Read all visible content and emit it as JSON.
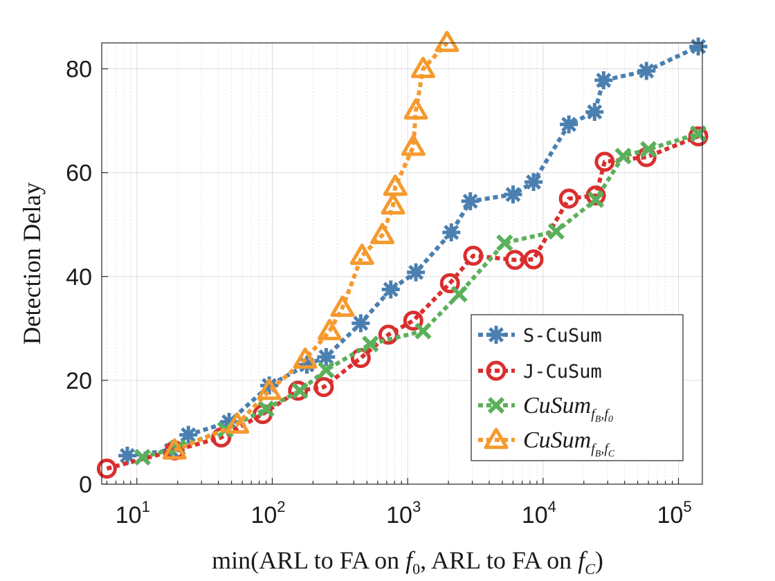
{
  "chart_data": {
    "type": "line",
    "xscale": "log",
    "xlim": [
      5.5,
      150000
    ],
    "ylim": [
      0,
      85
    ],
    "xlabel": "min(ARL to FA on f0, ARL to FA on fC)",
    "ylabel": "Detection Delay",
    "grid": true,
    "legend_position": "bottom-right",
    "x_ticks": [
      {
        "value": 10,
        "base": "10",
        "exp": "1"
      },
      {
        "value": 100,
        "base": "10",
        "exp": "2"
      },
      {
        "value": 1000,
        "base": "10",
        "exp": "3"
      },
      {
        "value": 10000,
        "base": "10",
        "exp": "4"
      },
      {
        "value": 100000,
        "base": "10",
        "exp": "5"
      }
    ],
    "y_ticks": [
      0,
      20,
      40,
      60,
      80
    ],
    "series": [
      {
        "name": "S-CuSum",
        "legend_label": "S-CuSum",
        "color": "#4a7fb0",
        "marker": "asterisk",
        "x": [
          8.5,
          18,
          24,
          48,
          95,
          180,
          250,
          450,
          750,
          1150,
          2100,
          2900,
          6000,
          8500,
          15500,
          24000,
          28000,
          58000,
          140000
        ],
        "y": [
          5.5,
          6.5,
          9.5,
          12,
          19,
          23,
          24.5,
          31,
          37.5,
          40.8,
          48.5,
          54.5,
          55.8,
          58.2,
          69.3,
          71.7,
          77.8,
          79.6,
          84.3
        ]
      },
      {
        "name": "J-CuSum",
        "legend_label": "J-CuSum",
        "color": "#d92f2f",
        "marker": "circle",
        "x": [
          6,
          19,
          42,
          85,
          155,
          240,
          450,
          720,
          1100,
          2050,
          3050,
          6200,
          8500,
          15500,
          24500,
          28500,
          58000,
          140000
        ],
        "y": [
          3,
          6.5,
          9,
          13.5,
          18,
          18.7,
          24.3,
          28.8,
          31.5,
          38.7,
          44,
          43.2,
          43.3,
          55,
          55.6,
          62.1,
          63,
          67
        ],
        "note": "monospace label"
      },
      {
        "name": "CuSum_fB,f0",
        "legend_label": "CuSum",
        "legend_sub": "f",
        "legend_sub2": "B",
        "legend_sub3": ",f",
        "legend_sub4": "0",
        "color": "#5bb05b",
        "marker": "x",
        "x": [
          11,
          20,
          45,
          90,
          160,
          250,
          530,
          1300,
          2400,
          5200,
          12500,
          24500,
          39000,
          60000,
          140000
        ],
        "y": [
          5.2,
          7,
          10.5,
          14.5,
          18,
          22,
          27,
          29.5,
          36.6,
          46.5,
          48.7,
          54.8,
          63.2,
          64.5,
          67.5
        ]
      },
      {
        "name": "CuSum_fB,fC",
        "legend_label": "CuSum",
        "legend_sub": "f",
        "legend_sub2": "B",
        "legend_sub3": ",f",
        "legend_sub4": "C",
        "color": "#f59a2e",
        "marker": "triangle",
        "x": [
          19,
          55,
          95,
          175,
          265,
          330,
          460,
          650,
          780,
          810,
          1100,
          1150,
          1300,
          1950
        ],
        "y": [
          6.5,
          11.5,
          18,
          24,
          29.5,
          34,
          44,
          48,
          53.7,
          57.3,
          65,
          72,
          80,
          85
        ]
      }
    ]
  }
}
